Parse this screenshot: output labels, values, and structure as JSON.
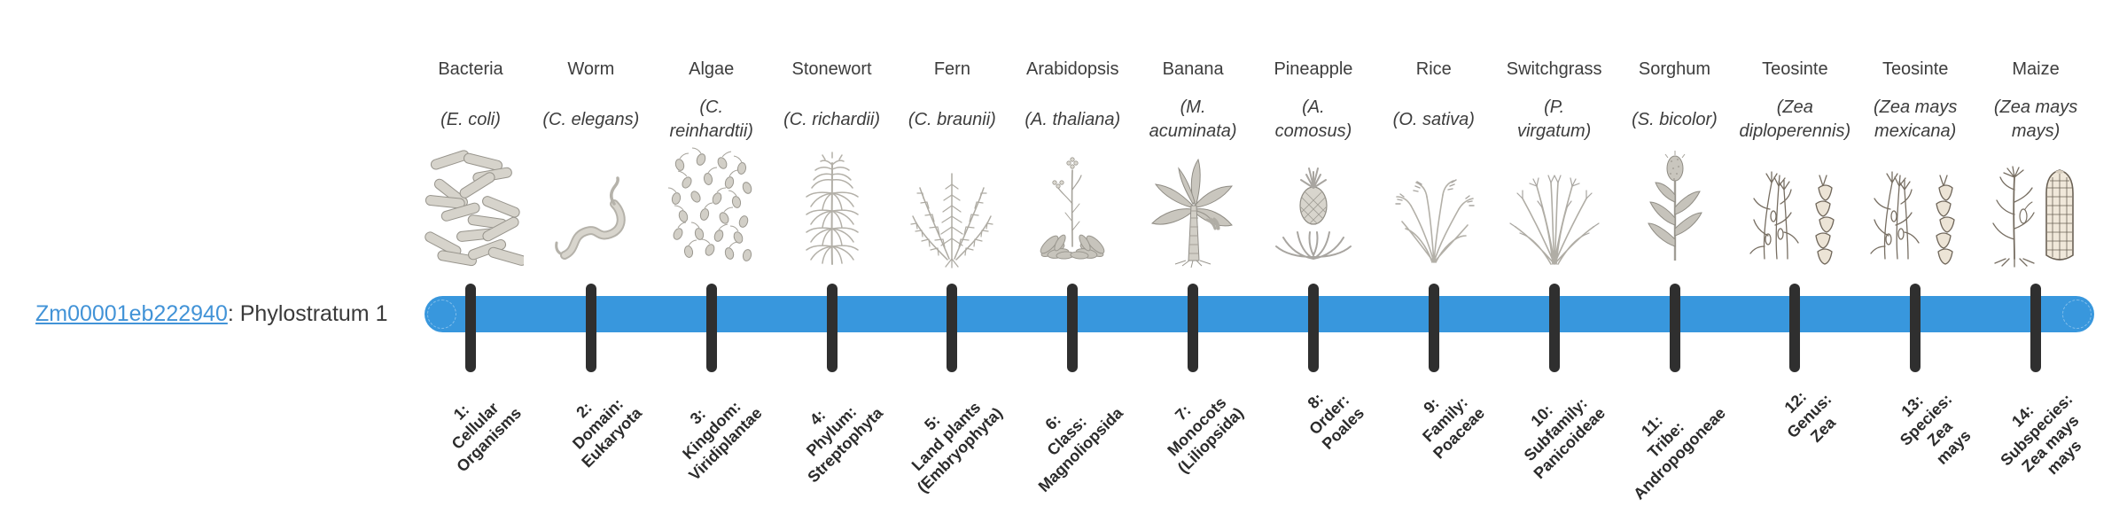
{
  "gene": {
    "id": "Zm00001eb222940",
    "phylo_text": ": Phylostratum 1"
  },
  "colors": {
    "bar_blue": "#3897dd",
    "tick_dark": "#2f2f2f",
    "link_blue": "#4293d7",
    "text_dark": "#3d3d3d",
    "label_dark": "#2b2b2b"
  },
  "stages": [
    {
      "num": 1,
      "organism": "Bacteria",
      "species": "(E. coli)",
      "icon": "bacteria-icon",
      "rank_label": "1:\nCellular\nOrganisms"
    },
    {
      "num": 2,
      "organism": "Worm",
      "species": "(C. elegans)",
      "icon": "worm-icon",
      "rank_label": "2:\nDomain:\nEukaryota"
    },
    {
      "num": 3,
      "organism": "Algae",
      "species": "(C.\nreinhardtii)",
      "icon": "algae-icon",
      "rank_label": "3:\nKingdom:\nViridiplantae"
    },
    {
      "num": 4,
      "organism": "Stonewort",
      "species": "(C. richardii)",
      "icon": "stonewort-icon",
      "rank_label": "4:\nPhylum:\nStreptophyta"
    },
    {
      "num": 5,
      "organism": "Fern",
      "species": "(C. braunii)",
      "icon": "fern-icon",
      "rank_label": "5:\nLand plants\n(Embryophyta)"
    },
    {
      "num": 6,
      "organism": "Arabidopsis",
      "species": "(A. thaliana)",
      "icon": "arabidopsis-icon",
      "rank_label": "6:\nClass:\nMagnoliopsida"
    },
    {
      "num": 7,
      "organism": "Banana",
      "species": "(M.\nacuminata)",
      "icon": "banana-icon",
      "rank_label": "7:\nMonocots\n(Liliopsida)"
    },
    {
      "num": 8,
      "organism": "Pineapple",
      "species": "(A.\ncomosus)",
      "icon": "pineapple-icon",
      "rank_label": "8:\nOrder:\nPoales"
    },
    {
      "num": 9,
      "organism": "Rice",
      "species": "(O. sativa)",
      "icon": "rice-icon",
      "rank_label": "9:\nFamily:\nPoaceae"
    },
    {
      "num": 10,
      "organism": "Switchgrass",
      "species": "(P.\nvirgatum)",
      "icon": "switchgrass-icon",
      "rank_label": "10:\nSubfamily:\nPanicoideae"
    },
    {
      "num": 11,
      "organism": "Sorghum",
      "species": "(S. bicolor)",
      "icon": "sorghum-icon",
      "rank_label": "11:\nTribe:\nAndropogoneae"
    },
    {
      "num": 12,
      "organism": "Teosinte",
      "species": "(Zea\ndiploperennis)",
      "icon": "teosinte-diploperennis-icon",
      "rank_label": "12:\nGenus:\nZea"
    },
    {
      "num": 13,
      "organism": "Teosinte",
      "species": "(Zea mays\nmexicana)",
      "icon": "teosinte-mexicana-icon",
      "rank_label": "13:\nSpecies:\nZea\nmays"
    },
    {
      "num": 14,
      "organism": "Maize",
      "species": "(Zea mays\nmays)",
      "icon": "maize-icon",
      "rank_label": "14:\nSubspecies:\nZea mays\nmays"
    }
  ]
}
